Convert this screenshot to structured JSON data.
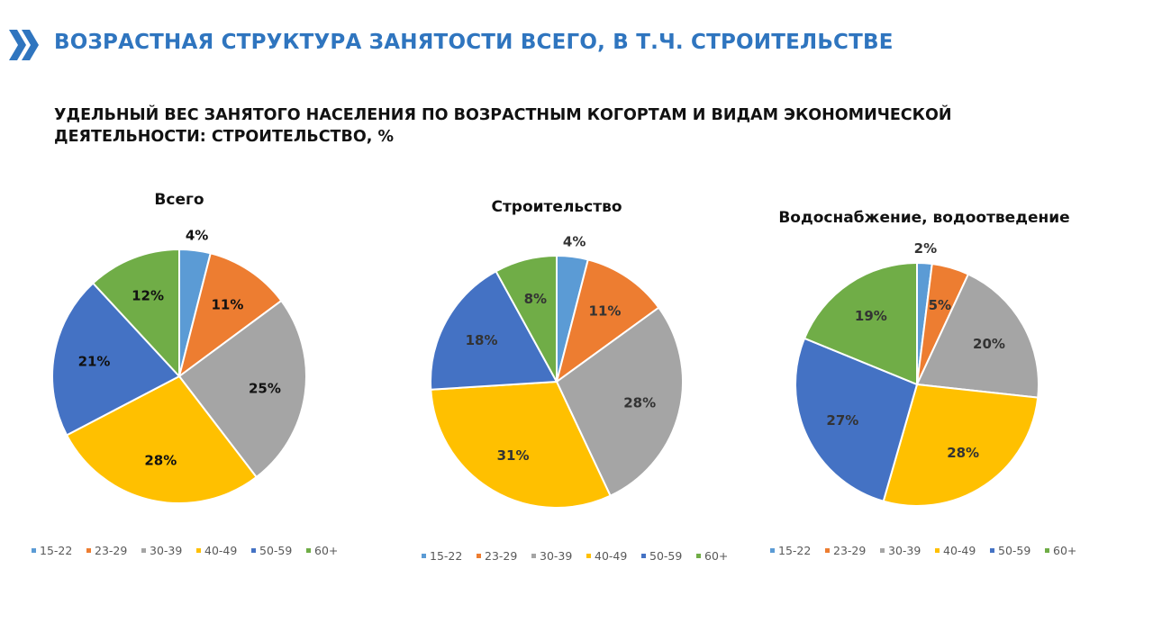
{
  "header": {
    "title": "ВОЗРАСТНАЯ СТРУКТУРА ЗАНЯТОСТИ ВСЕГО, В Т.Ч. СТРОИТЕЛЬСТВЕ",
    "icon": "double-chevron-right-icon"
  },
  "subtitle": "УДЕЛЬНЫЙ ВЕС ЗАНЯТОГО НАСЕЛЕНИЯ ПО ВОЗРАСТНЫМ КОГОРТАМ И ВИДАМ ЭКОНОМИЧЕСКОЙ ДЕЯТЕЛЬНОСТИ: СТРОИТЕЛЬСТВО, %",
  "chart_data": [
    {
      "type": "pie",
      "title": "Всего",
      "categories": [
        "15-22",
        "23-29",
        "30-39",
        "40-49",
        "50-59",
        "60+"
      ],
      "values": [
        4,
        11,
        25,
        28,
        21,
        12
      ],
      "labels": [
        "4%",
        "11%",
        "25%",
        "28%",
        "21%",
        "12%"
      ],
      "legend": "bottom"
    },
    {
      "type": "pie",
      "title": "Строительство",
      "categories": [
        "15-22",
        "23-29",
        "30-39",
        "40-49",
        "50-59",
        "60+"
      ],
      "values": [
        4,
        11,
        28,
        31,
        18,
        8
      ],
      "labels": [
        "4%",
        "11%",
        "28%",
        "31%",
        "18%",
        "8%"
      ],
      "legend": "bottom"
    },
    {
      "type": "pie",
      "title": "Водоснабжение, водоотведение",
      "categories": [
        "15-22",
        "23-29",
        "30-39",
        "40-49",
        "50-59",
        "60+"
      ],
      "values": [
        2,
        5,
        20,
        28,
        27,
        19
      ],
      "labels": [
        "2%",
        "5%",
        "20%",
        "28%",
        "27%",
        "19%"
      ],
      "legend": "bottom"
    }
  ],
  "colors": [
    "#5B9BD5",
    "#ED7D31",
    "#A5A5A5",
    "#FFC000",
    "#4472C4",
    "#70AD47"
  ]
}
